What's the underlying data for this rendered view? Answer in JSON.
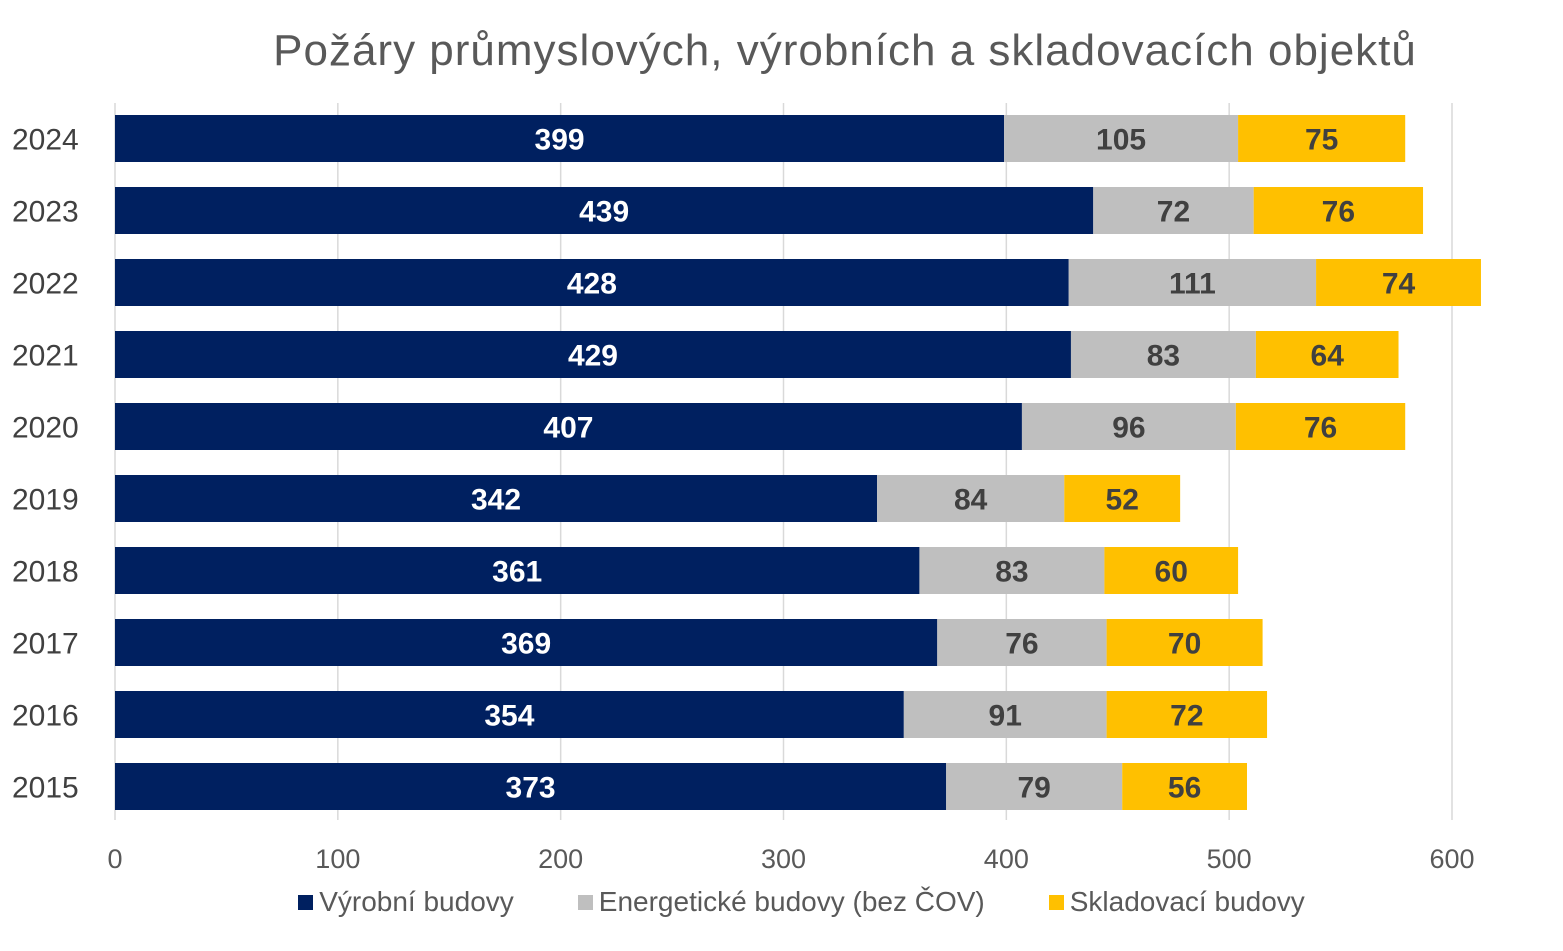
{
  "chart_data": {
    "type": "bar",
    "orientation": "horizontal",
    "stacked": true,
    "title": "Požáry průmyslových, výrobních a skladovacích objektů",
    "categories": [
      "2024",
      "2023",
      "2022",
      "2021",
      "2020",
      "2019",
      "2018",
      "2017",
      "2016",
      "2015"
    ],
    "series": [
      {
        "name": "Výrobní budovy",
        "color": "#002060",
        "values": [
          399,
          439,
          428,
          429,
          407,
          342,
          361,
          369,
          354,
          373
        ]
      },
      {
        "name": "Energetické budovy (bez ČOV)",
        "color": "#bfbfbf",
        "values": [
          105,
          72,
          111,
          83,
          96,
          84,
          83,
          76,
          91,
          79
        ]
      },
      {
        "name": "Skladovací budovy",
        "color": "#ffc000",
        "values": [
          75,
          76,
          74,
          64,
          76,
          52,
          60,
          70,
          72,
          56
        ]
      }
    ],
    "xlim": [
      0,
      600
    ],
    "xticks": [
      "0",
      "100",
      "200",
      "300",
      "400",
      "500",
      "600"
    ],
    "grid": "vertical",
    "legend": "bottom",
    "data_labels": true
  }
}
